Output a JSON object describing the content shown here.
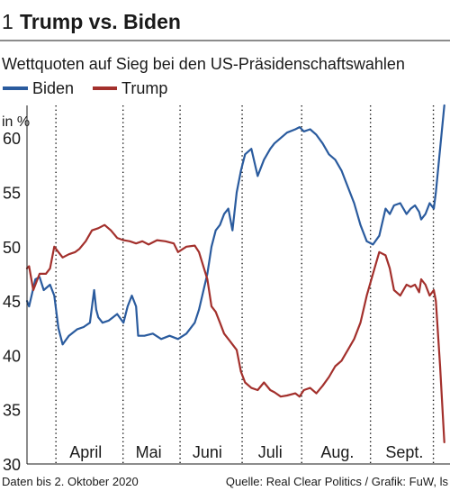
{
  "chart_data": {
    "type": "line",
    "figure_number": "1",
    "title": "Trump vs. Biden",
    "subtitle": "Wettquoten auf Sieg bei den US-Präsidenschaftswahlen",
    "ylabel": "in %",
    "ylim": [
      30,
      63
    ],
    "yticks": [
      30,
      35,
      40,
      45,
      50,
      55,
      60
    ],
    "xlim": [
      0,
      1
    ],
    "month_labels": [
      {
        "label": "April",
        "x": 0.14
      },
      {
        "label": "Mai",
        "x": 0.29
      },
      {
        "label": "Juni",
        "x": 0.43
      },
      {
        "label": "Juli",
        "x": 0.58
      },
      {
        "label": "Aug.",
        "x": 0.74
      },
      {
        "label": "Sept.",
        "x": 0.9
      }
    ],
    "month_boundaries": [
      0.069,
      0.229,
      0.365,
      0.513,
      0.655,
      0.819,
      0.969
    ],
    "grid": "vertical dotted",
    "legend_position": "top-left",
    "series": [
      {
        "name": "Biden",
        "color": "#2a5b9e",
        "x": [
          0.0,
          0.005,
          0.02,
          0.03,
          0.04,
          0.055,
          0.065,
          0.075,
          0.085,
          0.1,
          0.12,
          0.135,
          0.15,
          0.16,
          0.165,
          0.17,
          0.18,
          0.195,
          0.205,
          0.215,
          0.23,
          0.24,
          0.25,
          0.26,
          0.265,
          0.28,
          0.3,
          0.32,
          0.34,
          0.36,
          0.38,
          0.4,
          0.41,
          0.43,
          0.44,
          0.45,
          0.46,
          0.47,
          0.48,
          0.49,
          0.5,
          0.51,
          0.52,
          0.535,
          0.55,
          0.565,
          0.58,
          0.59,
          0.605,
          0.62,
          0.64,
          0.65,
          0.66,
          0.675,
          0.69,
          0.705,
          0.72,
          0.735,
          0.75,
          0.765,
          0.78,
          0.795,
          0.81,
          0.825,
          0.84,
          0.855,
          0.865,
          0.875,
          0.89,
          0.905,
          0.915,
          0.925,
          0.935,
          0.94,
          0.95,
          0.96,
          0.97,
          0.975,
          0.985,
          0.995
        ],
        "values": [
          45.0,
          44.5,
          47.0,
          47.2,
          46.0,
          46.5,
          45.5,
          42.5,
          41.0,
          41.8,
          42.4,
          42.6,
          43.0,
          46.0,
          44.2,
          43.5,
          43.0,
          43.2,
          43.5,
          43.8,
          43.0,
          44.5,
          45.5,
          44.5,
          41.8,
          41.8,
          42.0,
          41.5,
          41.8,
          41.5,
          42.0,
          43.0,
          44.2,
          47.5,
          50.0,
          51.5,
          52.0,
          53.0,
          53.5,
          51.5,
          55.0,
          57.0,
          58.5,
          59.0,
          56.5,
          58.0,
          59.0,
          59.5,
          60.0,
          60.5,
          60.8,
          61.0,
          60.6,
          60.8,
          60.3,
          59.5,
          58.5,
          58.0,
          57.0,
          55.5,
          54.0,
          52.0,
          50.5,
          50.2,
          51.0,
          53.5,
          53.0,
          53.8,
          54.0,
          53.0,
          53.5,
          53.8,
          53.2,
          52.5,
          53.0,
          54.0,
          53.5,
          55.0,
          59.0,
          63.0
        ]
      },
      {
        "name": "Trump",
        "color": "#a3302c",
        "x": [
          0.0,
          0.005,
          0.015,
          0.03,
          0.045,
          0.055,
          0.065,
          0.075,
          0.085,
          0.1,
          0.115,
          0.125,
          0.14,
          0.155,
          0.17,
          0.185,
          0.2,
          0.215,
          0.23,
          0.245,
          0.26,
          0.275,
          0.29,
          0.31,
          0.33,
          0.35,
          0.36,
          0.38,
          0.4,
          0.41,
          0.43,
          0.44,
          0.45,
          0.46,
          0.47,
          0.48,
          0.49,
          0.5,
          0.51,
          0.52,
          0.535,
          0.55,
          0.565,
          0.58,
          0.59,
          0.605,
          0.62,
          0.64,
          0.65,
          0.66,
          0.675,
          0.69,
          0.705,
          0.72,
          0.735,
          0.75,
          0.765,
          0.78,
          0.795,
          0.81,
          0.825,
          0.84,
          0.855,
          0.865,
          0.875,
          0.89,
          0.905,
          0.915,
          0.925,
          0.935,
          0.94,
          0.95,
          0.96,
          0.97,
          0.975,
          0.985,
          0.995
        ],
        "values": [
          48.0,
          48.2,
          46.0,
          47.5,
          47.5,
          48.0,
          50.0,
          49.5,
          49.0,
          49.3,
          49.5,
          49.8,
          50.5,
          51.5,
          51.7,
          52.0,
          51.5,
          50.8,
          50.6,
          50.5,
          50.3,
          50.5,
          50.2,
          50.6,
          50.5,
          50.3,
          49.5,
          50.0,
          50.1,
          49.5,
          47.0,
          44.5,
          44.0,
          43.0,
          42.0,
          41.5,
          41.0,
          40.5,
          38.5,
          37.5,
          37.0,
          36.8,
          37.5,
          36.8,
          36.6,
          36.2,
          36.3,
          36.5,
          36.2,
          36.8,
          37.0,
          36.5,
          37.2,
          38.0,
          39.0,
          39.5,
          40.5,
          41.5,
          43.0,
          45.5,
          47.5,
          49.5,
          49.2,
          48.0,
          46.0,
          45.5,
          46.5,
          46.3,
          46.5,
          45.8,
          47.0,
          46.5,
          45.5,
          46.0,
          45.0,
          39.0,
          32.0
        ]
      }
    ]
  },
  "footer": {
    "left": "Daten bis 2. Oktober 2020",
    "right": "Quelle: Real Clear Politics / Grafik: FuW, ls"
  }
}
